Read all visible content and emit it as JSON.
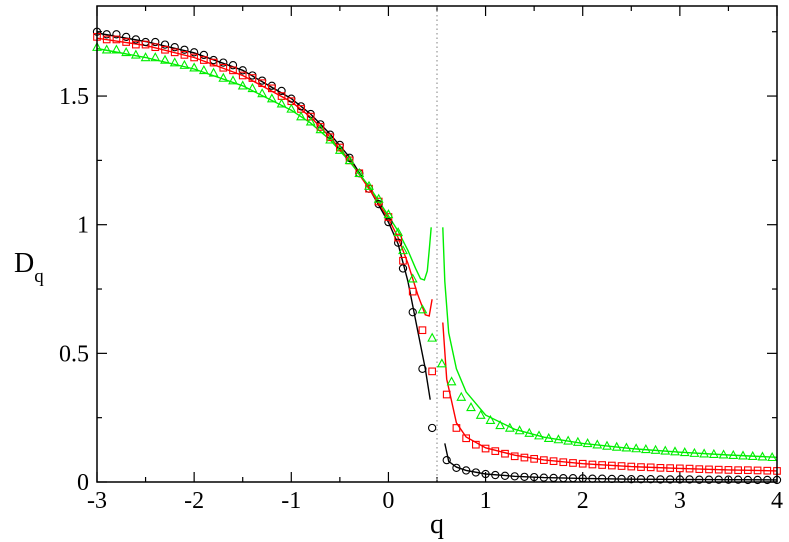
{
  "chart_data": {
    "type": "line",
    "xlabel": "q",
    "ylabel_main": "D",
    "ylabel_sub": "q",
    "xlim": [
      -3,
      4
    ],
    "ylim": [
      0,
      1.85
    ],
    "x_ticks": [
      -3,
      -2,
      -1,
      0,
      1,
      2,
      3,
      4
    ],
    "x_tick_labels": [
      "-3",
      "-2",
      "-1",
      "0",
      "1",
      "2",
      "3",
      "4"
    ],
    "y_ticks": [
      0,
      0.5,
      1,
      1.5
    ],
    "y_tick_labels": [
      "0",
      "0.5",
      "1",
      "1.5"
    ],
    "grid": false,
    "reference_line": {
      "x": 0.5,
      "style": "dotted",
      "color": "#808080"
    },
    "series": [
      {
        "color": "#000000",
        "marker": "circle",
        "points_left": [
          [
            -3.0,
            1.75
          ],
          [
            -2.9,
            1.74
          ],
          [
            -2.8,
            1.74
          ],
          [
            -2.7,
            1.73
          ],
          [
            -2.6,
            1.72
          ],
          [
            -2.5,
            1.71
          ],
          [
            -2.4,
            1.71
          ],
          [
            -2.3,
            1.7
          ],
          [
            -2.2,
            1.69
          ],
          [
            -2.1,
            1.68
          ],
          [
            -2.0,
            1.67
          ],
          [
            -1.9,
            1.66
          ],
          [
            -1.8,
            1.64
          ],
          [
            -1.7,
            1.63
          ],
          [
            -1.6,
            1.62
          ],
          [
            -1.5,
            1.6
          ],
          [
            -1.4,
            1.58
          ],
          [
            -1.3,
            1.56
          ],
          [
            -1.2,
            1.54
          ],
          [
            -1.1,
            1.52
          ],
          [
            -1.0,
            1.49
          ],
          [
            -0.9,
            1.46
          ],
          [
            -0.8,
            1.43
          ],
          [
            -0.7,
            1.39
          ],
          [
            -0.6,
            1.35
          ],
          [
            -0.5,
            1.31
          ],
          [
            -0.4,
            1.26
          ],
          [
            -0.3,
            1.2
          ],
          [
            -0.2,
            1.14
          ],
          [
            -0.1,
            1.08
          ],
          [
            0.0,
            1.01
          ],
          [
            0.1,
            0.93
          ],
          [
            0.15,
            0.83
          ],
          [
            0.25,
            0.66
          ],
          [
            0.35,
            0.44
          ],
          [
            0.45,
            0.21
          ]
        ],
        "points_right": [
          [
            0.6,
            0.085
          ],
          [
            0.7,
            0.055
          ],
          [
            0.8,
            0.045
          ],
          [
            0.9,
            0.037
          ],
          [
            1.0,
            0.031
          ],
          [
            1.1,
            0.027
          ],
          [
            1.2,
            0.024
          ],
          [
            1.3,
            0.022
          ],
          [
            1.4,
            0.02
          ],
          [
            1.5,
            0.019
          ],
          [
            1.6,
            0.017
          ],
          [
            1.7,
            0.016
          ],
          [
            1.8,
            0.015
          ],
          [
            1.9,
            0.015
          ],
          [
            2.0,
            0.014
          ],
          [
            2.1,
            0.013
          ],
          [
            2.2,
            0.013
          ],
          [
            2.3,
            0.012
          ],
          [
            2.4,
            0.012
          ],
          [
            2.5,
            0.011
          ],
          [
            2.6,
            0.011
          ],
          [
            2.7,
            0.011
          ],
          [
            2.8,
            0.01
          ],
          [
            2.9,
            0.01
          ],
          [
            3.0,
            0.01
          ],
          [
            3.1,
            0.01
          ],
          [
            3.2,
            0.009
          ],
          [
            3.3,
            0.009
          ],
          [
            3.4,
            0.009
          ],
          [
            3.5,
            0.009
          ],
          [
            3.6,
            0.009
          ],
          [
            3.7,
            0.008
          ],
          [
            3.8,
            0.008
          ],
          [
            3.9,
            0.008
          ],
          [
            4.0,
            0.008
          ]
        ],
        "curve_left": [
          [
            -3.0,
            1.745
          ],
          [
            -2.5,
            1.712
          ],
          [
            -2.0,
            1.668
          ],
          [
            -1.5,
            1.6
          ],
          [
            -1.0,
            1.49
          ],
          [
            -0.8,
            1.43
          ],
          [
            -0.6,
            1.352
          ],
          [
            -0.4,
            1.262
          ],
          [
            -0.2,
            1.142
          ],
          [
            0.0,
            1.01
          ],
          [
            0.1,
            0.925
          ],
          [
            0.2,
            0.78
          ],
          [
            0.3,
            0.59
          ],
          [
            0.38,
            0.44
          ],
          [
            0.43,
            0.32
          ]
        ],
        "curve_right": [
          [
            0.58,
            0.15
          ],
          [
            0.62,
            0.08
          ],
          [
            0.7,
            0.058
          ],
          [
            0.8,
            0.045
          ],
          [
            1.0,
            0.031
          ],
          [
            1.3,
            0.022
          ],
          [
            1.6,
            0.017
          ],
          [
            2.0,
            0.014
          ],
          [
            2.5,
            0.011
          ],
          [
            3.0,
            0.01
          ],
          [
            3.5,
            0.009
          ],
          [
            4.0,
            0.008
          ]
        ]
      },
      {
        "color": "#ff0000",
        "marker": "square",
        "points_left": [
          [
            -3.0,
            1.73
          ],
          [
            -2.9,
            1.72
          ],
          [
            -2.8,
            1.72
          ],
          [
            -2.7,
            1.71
          ],
          [
            -2.6,
            1.7
          ],
          [
            -2.5,
            1.7
          ],
          [
            -2.4,
            1.69
          ],
          [
            -2.3,
            1.68
          ],
          [
            -2.2,
            1.67
          ],
          [
            -2.1,
            1.66
          ],
          [
            -2.0,
            1.65
          ],
          [
            -1.9,
            1.64
          ],
          [
            -1.8,
            1.63
          ],
          [
            -1.7,
            1.61
          ],
          [
            -1.6,
            1.6
          ],
          [
            -1.5,
            1.58
          ],
          [
            -1.4,
            1.57
          ],
          [
            -1.3,
            1.55
          ],
          [
            -1.2,
            1.53
          ],
          [
            -1.1,
            1.5
          ],
          [
            -1.0,
            1.48
          ],
          [
            -0.9,
            1.45
          ],
          [
            -0.8,
            1.42
          ],
          [
            -0.7,
            1.38
          ],
          [
            -0.6,
            1.34
          ],
          [
            -0.5,
            1.3
          ],
          [
            -0.4,
            1.25
          ],
          [
            -0.3,
            1.2
          ],
          [
            -0.2,
            1.14
          ],
          [
            -0.1,
            1.09
          ],
          [
            0.0,
            1.03
          ],
          [
            0.1,
            0.95
          ],
          [
            0.15,
            0.86
          ],
          [
            0.25,
            0.74
          ],
          [
            0.35,
            0.59
          ],
          [
            0.45,
            0.43
          ]
        ],
        "points_right": [
          [
            0.6,
            0.34
          ],
          [
            0.7,
            0.21
          ],
          [
            0.8,
            0.17
          ],
          [
            0.9,
            0.145
          ],
          [
            1.0,
            0.13
          ],
          [
            1.1,
            0.12
          ],
          [
            1.2,
            0.11
          ],
          [
            1.3,
            0.1
          ],
          [
            1.4,
            0.095
          ],
          [
            1.5,
            0.09
          ],
          [
            1.6,
            0.085
          ],
          [
            1.7,
            0.081
          ],
          [
            1.8,
            0.077
          ],
          [
            1.9,
            0.074
          ],
          [
            2.0,
            0.071
          ],
          [
            2.1,
            0.068
          ],
          [
            2.2,
            0.066
          ],
          [
            2.3,
            0.064
          ],
          [
            2.4,
            0.062
          ],
          [
            2.5,
            0.06
          ],
          [
            2.6,
            0.058
          ],
          [
            2.7,
            0.057
          ],
          [
            2.8,
            0.055
          ],
          [
            2.9,
            0.054
          ],
          [
            3.0,
            0.053
          ],
          [
            3.1,
            0.052
          ],
          [
            3.2,
            0.05
          ],
          [
            3.3,
            0.049
          ],
          [
            3.4,
            0.048
          ],
          [
            3.5,
            0.047
          ],
          [
            3.6,
            0.046
          ],
          [
            3.7,
            0.046
          ],
          [
            3.8,
            0.045
          ],
          [
            3.9,
            0.044
          ],
          [
            4.0,
            0.043
          ]
        ],
        "curve_left": [
          [
            -3.0,
            1.725
          ],
          [
            -2.5,
            1.697
          ],
          [
            -2.0,
            1.65
          ],
          [
            -1.5,
            1.58
          ],
          [
            -1.0,
            1.478
          ],
          [
            -0.8,
            1.418
          ],
          [
            -0.6,
            1.34
          ],
          [
            -0.4,
            1.25
          ],
          [
            -0.2,
            1.14
          ],
          [
            0.0,
            1.025
          ],
          [
            0.1,
            0.95
          ],
          [
            0.2,
            0.85
          ],
          [
            0.3,
            0.73
          ],
          [
            0.38,
            0.65
          ],
          [
            0.42,
            0.645
          ],
          [
            0.45,
            0.71
          ]
        ],
        "curve_right": [
          [
            0.56,
            0.62
          ],
          [
            0.6,
            0.4
          ],
          [
            0.7,
            0.23
          ],
          [
            0.8,
            0.175
          ],
          [
            1.0,
            0.133
          ],
          [
            1.3,
            0.104
          ],
          [
            1.6,
            0.086
          ],
          [
            2.0,
            0.071
          ],
          [
            2.5,
            0.06
          ],
          [
            3.0,
            0.053
          ],
          [
            3.5,
            0.047
          ],
          [
            4.0,
            0.043
          ]
        ]
      },
      {
        "color": "#00ee00",
        "marker": "triangle",
        "points_left": [
          [
            -3.0,
            1.69
          ],
          [
            -2.9,
            1.68
          ],
          [
            -2.8,
            1.68
          ],
          [
            -2.7,
            1.67
          ],
          [
            -2.6,
            1.66
          ],
          [
            -2.5,
            1.65
          ],
          [
            -2.4,
            1.65
          ],
          [
            -2.3,
            1.64
          ],
          [
            -2.2,
            1.63
          ],
          [
            -2.1,
            1.62
          ],
          [
            -2.0,
            1.61
          ],
          [
            -1.9,
            1.6
          ],
          [
            -1.8,
            1.59
          ],
          [
            -1.7,
            1.57
          ],
          [
            -1.6,
            1.56
          ],
          [
            -1.5,
            1.54
          ],
          [
            -1.4,
            1.53
          ],
          [
            -1.3,
            1.51
          ],
          [
            -1.2,
            1.49
          ],
          [
            -1.1,
            1.47
          ],
          [
            -1.0,
            1.45
          ],
          [
            -0.9,
            1.42
          ],
          [
            -0.8,
            1.4
          ],
          [
            -0.7,
            1.37
          ],
          [
            -0.6,
            1.33
          ],
          [
            -0.5,
            1.29
          ],
          [
            -0.4,
            1.25
          ],
          [
            -0.3,
            1.2
          ],
          [
            -0.2,
            1.15
          ],
          [
            -0.1,
            1.1
          ],
          [
            0.0,
            1.04
          ],
          [
            0.1,
            0.97
          ],
          [
            0.15,
            0.9
          ],
          [
            0.25,
            0.79
          ],
          [
            0.35,
            0.67
          ],
          [
            0.45,
            0.56
          ]
        ],
        "points_right": [
          [
            0.55,
            0.46
          ],
          [
            0.65,
            0.39
          ],
          [
            0.75,
            0.33
          ],
          [
            0.85,
            0.29
          ],
          [
            0.95,
            0.26
          ],
          [
            1.05,
            0.24
          ],
          [
            1.15,
            0.22
          ],
          [
            1.25,
            0.21
          ],
          [
            1.35,
            0.2
          ],
          [
            1.45,
            0.19
          ],
          [
            1.55,
            0.18
          ],
          [
            1.65,
            0.17
          ],
          [
            1.75,
            0.165
          ],
          [
            1.85,
            0.16
          ],
          [
            1.95,
            0.155
          ],
          [
            2.05,
            0.15
          ],
          [
            2.15,
            0.145
          ],
          [
            2.25,
            0.14
          ],
          [
            2.35,
            0.136
          ],
          [
            2.45,
            0.133
          ],
          [
            2.55,
            0.13
          ],
          [
            2.65,
            0.127
          ],
          [
            2.75,
            0.124
          ],
          [
            2.85,
            0.121
          ],
          [
            2.95,
            0.118
          ],
          [
            3.05,
            0.115
          ],
          [
            3.15,
            0.112
          ],
          [
            3.25,
            0.11
          ],
          [
            3.35,
            0.108
          ],
          [
            3.45,
            0.106
          ],
          [
            3.55,
            0.104
          ],
          [
            3.65,
            0.102
          ],
          [
            3.75,
            0.1
          ],
          [
            3.85,
            0.098
          ],
          [
            3.95,
            0.096
          ]
        ],
        "curve_left": [
          [
            -3.0,
            1.685
          ],
          [
            -2.5,
            1.65
          ],
          [
            -2.0,
            1.605
          ],
          [
            -1.5,
            1.54
          ],
          [
            -1.0,
            1.445
          ],
          [
            -0.8,
            1.395
          ],
          [
            -0.6,
            1.33
          ],
          [
            -0.4,
            1.245
          ],
          [
            -0.2,
            1.15
          ],
          [
            0.0,
            1.035
          ],
          [
            0.1,
            0.975
          ],
          [
            0.2,
            0.9
          ],
          [
            0.28,
            0.83
          ],
          [
            0.33,
            0.79
          ],
          [
            0.37,
            0.785
          ],
          [
            0.4,
            0.82
          ],
          [
            0.42,
            0.9
          ],
          [
            0.44,
            0.99
          ]
        ],
        "curve_right": [
          [
            0.56,
            0.99
          ],
          [
            0.58,
            0.78
          ],
          [
            0.62,
            0.58
          ],
          [
            0.7,
            0.44
          ],
          [
            0.8,
            0.35
          ],
          [
            1.0,
            0.26
          ],
          [
            1.3,
            0.205
          ],
          [
            1.6,
            0.174
          ],
          [
            2.0,
            0.15
          ],
          [
            2.5,
            0.13
          ],
          [
            3.0,
            0.116
          ],
          [
            3.5,
            0.105
          ],
          [
            4.0,
            0.096
          ]
        ]
      }
    ]
  }
}
